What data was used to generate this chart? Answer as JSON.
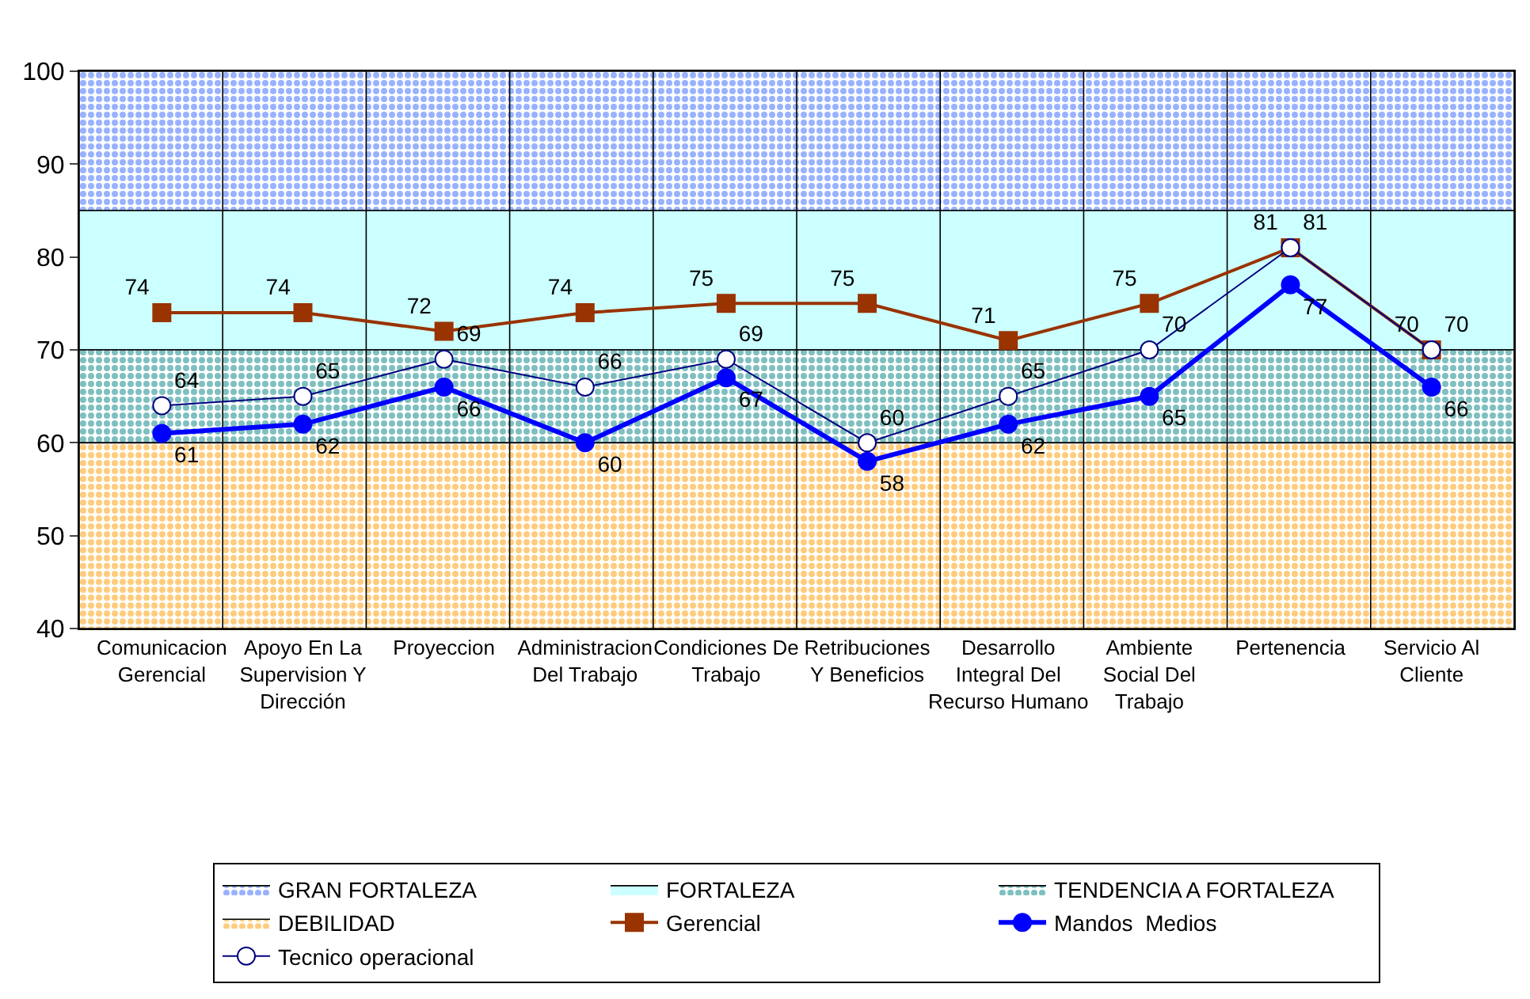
{
  "chart_data": {
    "type": "line",
    "categories": [
      "Comunicacion Gerencial",
      "Apoyo En La Supervision Y Dirección",
      "Proyeccion",
      "Administracion Del Trabajo",
      "Condiciones De Trabajo",
      "Retribuciones Y Beneficios",
      "Desarrollo Integral Del Recurso Humano",
      "Ambiente Social Del Trabajo",
      "Pertenencia",
      "Servicio Al Cliente"
    ],
    "series": [
      {
        "name": "Gerencial",
        "color": "#993300",
        "marker": "square",
        "values": [
          74,
          74,
          72,
          74,
          75,
          75,
          71,
          75,
          81,
          70
        ]
      },
      {
        "name": "Mandos  Medios",
        "color": "#0000ff",
        "marker": "circle",
        "values": [
          61,
          62,
          66,
          60,
          67,
          58,
          62,
          65,
          77,
          66
        ]
      },
      {
        "name": "Tecnico operacional",
        "color": "#000080",
        "marker": "circle-open",
        "values": [
          64,
          65,
          69,
          66,
          69,
          60,
          65,
          70,
          81,
          70
        ]
      }
    ],
    "bands": [
      {
        "axis": "y",
        "from": 85,
        "to": 100,
        "label": "GRAN FORTALEZA",
        "color": "#3366ff"
      },
      {
        "axis": "y",
        "from": 70,
        "to": 85,
        "label": "FORTALEZA",
        "color": "#ccffff"
      },
      {
        "axis": "y",
        "from": 60,
        "to": 70,
        "label": "TENDENCIA A FORTALEZA",
        "color": "#008080"
      },
      {
        "axis": "y",
        "from": 40,
        "to": 60,
        "label": "DEBILIDAD",
        "color": "#ff9900"
      }
    ],
    "ylim": [
      40,
      100
    ],
    "yticks": [
      40,
      50,
      60,
      70,
      80,
      90,
      100
    ],
    "data_labels": true,
    "grid": "x",
    "legend": "bottom"
  }
}
